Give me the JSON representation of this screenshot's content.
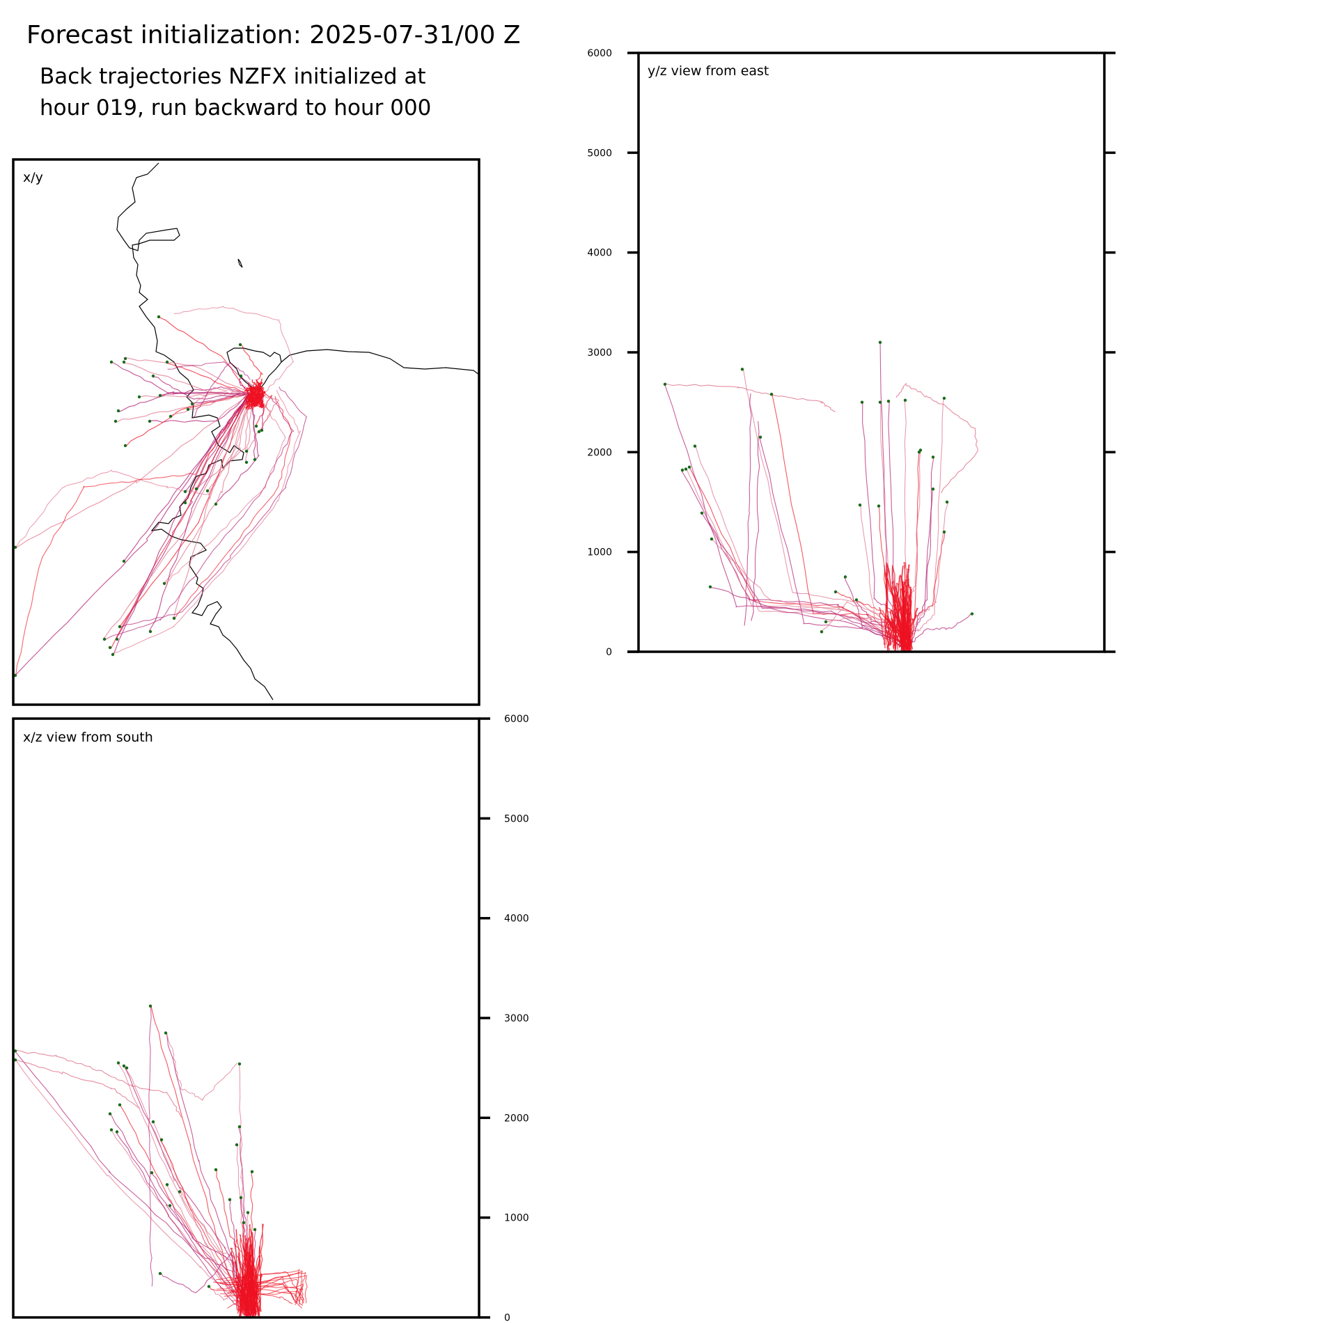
{
  "header": {
    "title": "Forecast initialization: 2025-07-31/00 Z",
    "subtitle_line1": "Back trajectories NZFX initialized at",
    "subtitle_line2": "hour 019, run backward to hour 000"
  },
  "colors": {
    "trajectory_magenta": "#b0186e",
    "trajectory_pink": "#e0708a",
    "trajectory_red": "#ee1122",
    "start_point": "#1a6b1a",
    "coastline": "#000000",
    "frame": "#000000"
  },
  "chart_data": [
    {
      "type": "line",
      "panel": "x/y",
      "label": "x/y",
      "description_series": "back trajectories over map with coastline",
      "grid": false,
      "legend": "none"
    },
    {
      "type": "line",
      "panel": "y/z",
      "label": "y/z view from east",
      "yticks": [
        0,
        1000,
        2000,
        3000,
        4000,
        5000,
        6000
      ],
      "ytick_labels": [
        "0",
        "1000",
        "2000",
        "3000",
        "4000",
        "5000",
        "6000"
      ],
      "ylim": [
        0,
        6000
      ],
      "grid": false,
      "legend": "none"
    },
    {
      "type": "line",
      "panel": "x/z",
      "label": "x/z view from south",
      "yticks": [
        0,
        1000,
        2000,
        3000,
        4000,
        5000,
        6000
      ],
      "ytick_labels": [
        "0",
        "1000",
        "2000",
        "3000",
        "4000",
        "5000",
        "6000"
      ],
      "ylim": [
        0,
        6000
      ],
      "grid": false,
      "legend": "none"
    }
  ]
}
